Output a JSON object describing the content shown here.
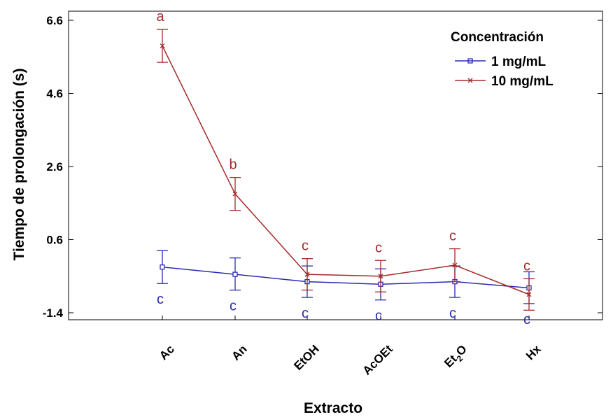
{
  "chart_data": {
    "type": "line",
    "title": "",
    "xlabel": "Extracto",
    "ylabel": "Tiempo de prolongación (s)",
    "ylim": [
      -1.4,
      6.6
    ],
    "yticks": [
      "6.6",
      "4.6",
      "2.6",
      "0.6",
      "-1.4"
    ],
    "categories": [
      "Ac",
      "An",
      "EtOH",
      "AcOEt",
      "Et",
      "Hx"
    ],
    "category_subscripts": [
      "",
      "",
      "",
      "",
      "2O",
      ""
    ],
    "legend": {
      "title": "Concentración",
      "position": "top-right"
    },
    "grid": false,
    "series": [
      {
        "name": "1  mg/mL",
        "color": "#2b2bb0",
        "marker": "square",
        "values": [
          -0.15,
          -0.35,
          -0.55,
          -0.62,
          -0.55,
          -0.72
        ],
        "ci_low": [
          -0.6,
          -0.78,
          -0.98,
          -1.05,
          -0.98,
          -1.15
        ],
        "ci_high": [
          0.3,
          0.1,
          -0.12,
          -0.2,
          -0.12,
          -0.28
        ],
        "letters": [
          "c",
          "c",
          "c",
          "c",
          "c",
          "c"
        ]
      },
      {
        "name": "10 mg/mL",
        "color": "#a52a2a",
        "marker": "x",
        "values": [
          5.9,
          1.85,
          -0.35,
          -0.4,
          -0.1,
          -0.9
        ],
        "ci_low": [
          5.45,
          1.4,
          -0.78,
          -0.83,
          -0.55,
          -1.33
        ],
        "ci_high": [
          6.35,
          2.3,
          0.08,
          0.03,
          0.35,
          -0.47
        ],
        "letters": [
          "a",
          "b",
          "c",
          "c",
          "c",
          "c"
        ]
      }
    ]
  }
}
